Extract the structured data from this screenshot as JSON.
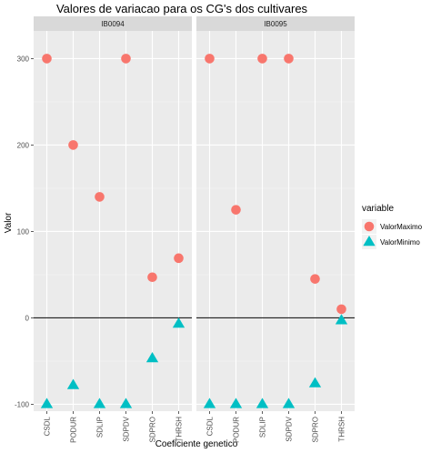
{
  "chart_data": {
    "type": "scatter",
    "title": "Valores de variacao para os CG's dos cultivares",
    "xlabel": "Coeficiente genetico",
    "ylabel": "Valor",
    "ylim": [
      -108,
      332
    ],
    "y_ticks": [
      -100,
      0,
      100,
      200,
      300
    ],
    "categories": [
      "CSDL",
      "PODUR",
      "SDLIP",
      "SDPDV",
      "SDPRO",
      "THRSH"
    ],
    "reference_line_y": 0,
    "grid": true,
    "legend": {
      "title": "variable",
      "placement": "right",
      "entries": [
        {
          "label": "ValorMaximo",
          "color": "#F8766D",
          "shape": "circle"
        },
        {
          "label": "ValorMinimo",
          "color": "#00BFC4",
          "shape": "triangle"
        }
      ]
    },
    "facets": [
      {
        "name": "IB0094",
        "series": [
          {
            "name": "ValorMaximo",
            "values": [
              300,
              200,
              140,
              300,
              47,
              69
            ]
          },
          {
            "name": "ValorMinimo",
            "values": [
              -100,
              -78,
              -100,
              -100,
              -47,
              -7
            ]
          }
        ]
      },
      {
        "name": "IB0095",
        "series": [
          {
            "name": "ValorMaximo",
            "values": [
              300,
              125,
              300,
              300,
              45,
              10
            ]
          },
          {
            "name": "ValorMinimo",
            "values": [
              -100,
              -100,
              -100,
              -100,
              -76,
              -3
            ]
          }
        ]
      }
    ]
  }
}
